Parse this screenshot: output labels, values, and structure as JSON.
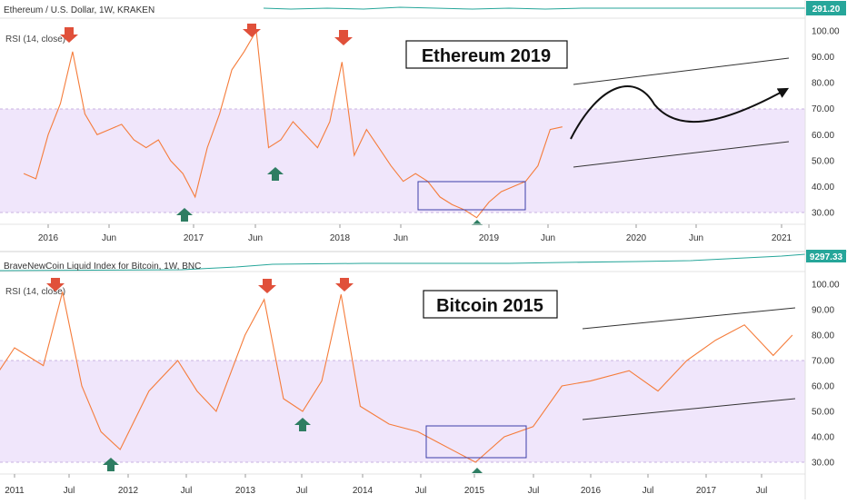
{
  "eth": {
    "price_title": "Ethereum / U.S. Dollar, 1W, KRAKEN",
    "price_label": "291.20",
    "rsi_title": "RSI (14, close)",
    "headline": "Ethereum 2019",
    "time_labels": [
      "2016",
      "Jun",
      "2017",
      "Jun",
      "2018",
      "Jun",
      "2019",
      "Jun",
      "2020",
      "Jun",
      "2021"
    ]
  },
  "btc": {
    "price_title": "BraveNewCoin Liquid Index for Bitcoin, 1W, BNC",
    "price_label": "9297.33",
    "rsi_title": "RSI (14, close)",
    "headline": "Bitcoin 2015",
    "time_labels": [
      "2011",
      "Jul",
      "2012",
      "Jul",
      "2013",
      "Jul",
      "2014",
      "Jul",
      "2015",
      "Jul",
      "2016",
      "Jul",
      "2017",
      "Jul"
    ]
  },
  "rsi_axis_labels": [
    "100.00",
    "90.00",
    "80.00",
    "70.00",
    "60.00",
    "50.00",
    "40.00",
    "30.00"
  ],
  "colors": {
    "rsi_line": "#f57c3b",
    "band_fill": "#f0e6fb",
    "up_arrow": "#2e7d62",
    "down_arrow": "#e0503a",
    "price_line": "#26a69a",
    "box_stroke": "#3b3fa8",
    "badge": "#26a69a"
  },
  "chart_data": [
    {
      "type": "line",
      "title": "Ethereum / U.S. Dollar, 1W, KRAKEN — RSI (14, close)",
      "ylim": [
        25,
        103
      ],
      "x_ticks": [
        "2016",
        "Jun",
        "2017",
        "Jun",
        "2018",
        "Jun",
        "2019",
        "Jun",
        "2020",
        "Jun",
        "2021"
      ],
      "bands": [
        30,
        70
      ],
      "series": [
        {
          "name": "RSI (14, close)",
          "x": [
            "2015-11",
            "2015-12",
            "2016-01",
            "2016-02",
            "2016-03",
            "2016-04",
            "2016-05",
            "2016-06",
            "2016-07",
            "2016-08",
            "2016-09",
            "2016-10",
            "2016-11",
            "2016-12",
            "2017-01",
            "2017-02",
            "2017-03",
            "2017-04",
            "2017-05",
            "2017-06",
            "2017-07",
            "2017-08",
            "2017-09",
            "2017-10",
            "2017-11",
            "2017-12",
            "2018-01",
            "2018-02",
            "2018-03",
            "2018-04",
            "2018-05",
            "2018-06",
            "2018-07",
            "2018-08",
            "2018-09",
            "2018-10",
            "2018-11",
            "2018-12",
            "2019-01",
            "2019-02",
            "2019-03",
            "2019-04",
            "2019-05",
            "2019-06",
            "2019-07"
          ],
          "values": [
            45,
            43,
            60,
            72,
            92,
            68,
            60,
            62,
            64,
            58,
            55,
            58,
            50,
            45,
            36,
            55,
            68,
            85,
            92,
            100,
            55,
            58,
            65,
            60,
            55,
            65,
            88,
            52,
            62,
            55,
            48,
            42,
            45,
            42,
            36,
            33,
            31,
            28,
            34,
            38,
            40,
            42,
            48,
            62,
            63
          ]
        }
      ],
      "annotations": [
        "Ethereum 2019"
      ]
    },
    {
      "type": "line",
      "title": "BraveNewCoin Liquid Index for Bitcoin, 1W, BNC — RSI (14, close)",
      "ylim": [
        27,
        103
      ],
      "x_ticks": [
        "2011",
        "Jul",
        "2012",
        "Jul",
        "2013",
        "Jul",
        "2014",
        "Jul",
        "2015",
        "Jul",
        "2016",
        "Jul",
        "2017",
        "Jul"
      ],
      "bands": [
        30,
        70
      ],
      "series": [
        {
          "name": "RSI (14, close)",
          "x": [
            "2010-10",
            "2011-01",
            "2011-04",
            "2011-06",
            "2011-08",
            "2011-10",
            "2011-12",
            "2012-03",
            "2012-06",
            "2012-08",
            "2012-10",
            "2013-01",
            "2013-03",
            "2013-05",
            "2013-07",
            "2013-09",
            "2013-11",
            "2014-01",
            "2014-04",
            "2014-07",
            "2014-09",
            "2014-11",
            "2015-01",
            "2015-04",
            "2015-07",
            "2015-10",
            "2016-01",
            "2016-05",
            "2016-08",
            "2016-11",
            "2017-02",
            "2017-05",
            "2017-08",
            "2017-10"
          ],
          "values": [
            58,
            75,
            68,
            97,
            60,
            42,
            35,
            58,
            70,
            58,
            50,
            80,
            94,
            55,
            50,
            62,
            96,
            52,
            45,
            42,
            38,
            34,
            30,
            40,
            44,
            60,
            62,
            66,
            58,
            70,
            78,
            84,
            72,
            80
          ]
        }
      ],
      "annotations": [
        "Bitcoin 2015"
      ]
    }
  ]
}
